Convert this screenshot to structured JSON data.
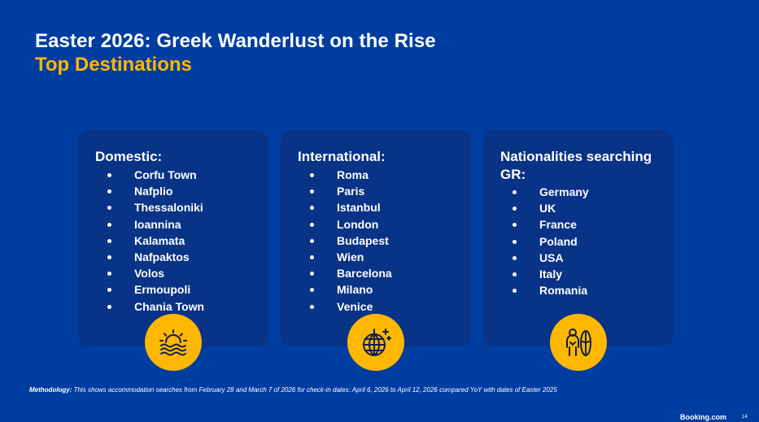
{
  "slide": {
    "title": "Easter 2026: Greek Wanderlust on the Rise",
    "subtitle": "Top Destinations",
    "accent_color": "#FFB700",
    "background_color": "#003DA1",
    "card_color": "#083386"
  },
  "cards": [
    {
      "heading": "Domestic:",
      "icon": "sunset-over-sea-icon",
      "items": [
        "Corfu Town",
        "Nafplio",
        "Thessaloniki",
        "Ioannina",
        "Kalamata",
        "Nafpaktos",
        "Volos",
        "Ermoupoli",
        "Chania Town"
      ]
    },
    {
      "heading": "International:",
      "icon": "disco-ball-icon",
      "items": [
        "Roma",
        "Paris",
        "Istanbul",
        "London",
        "Budapest",
        "Wien",
        "Barcelona",
        "Milano",
        "Venice"
      ]
    },
    {
      "heading": "Nationalities searching GR:",
      "icon": "surfer-icon",
      "items": [
        "Germany",
        "UK",
        "France",
        "Poland",
        "USA",
        "Italy",
        "Romania"
      ]
    }
  ],
  "footer": {
    "methodology_label": "Methodology:",
    "methodology_text": " This shows accommodation searches from  February 28 and March 7 of 2026 for check-in dates: April 6, 2026 to April 12, 2026 compared YoY with dates of Easter 2025",
    "brand": "Booking.com",
    "page_number": "14"
  }
}
